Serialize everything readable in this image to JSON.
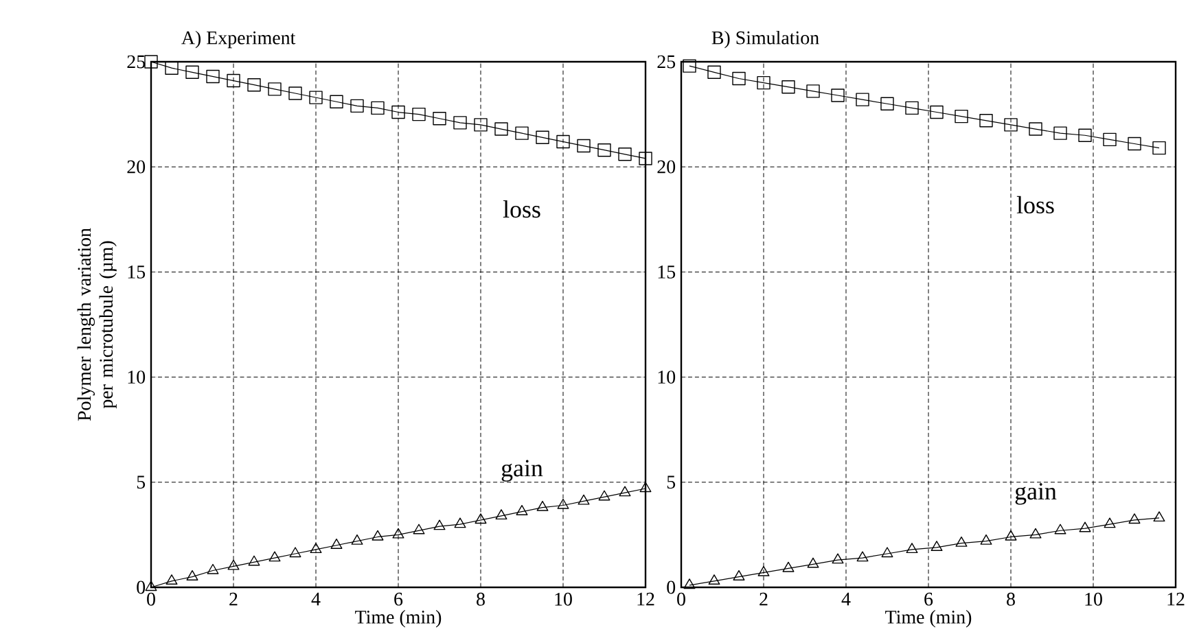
{
  "chart_data": [
    {
      "type": "line",
      "title": "A) Experiment",
      "xlabel": "Time (min)",
      "ylabel": "Polymer length variation per microtubule (µm)",
      "xlim": [
        0,
        12
      ],
      "ylim": [
        0,
        25
      ],
      "xticks": [
        0,
        2,
        4,
        6,
        8,
        10,
        12
      ],
      "yticks": [
        0,
        5,
        10,
        15,
        20,
        25
      ],
      "grid": true,
      "series": [
        {
          "name": "loss",
          "color": "#000000",
          "marker": "square",
          "x": [
            0,
            0.5,
            1,
            1.5,
            2,
            2.5,
            3,
            3.5,
            4,
            4.5,
            5,
            5.5,
            6,
            6.5,
            7,
            7.5,
            8,
            8.5,
            9,
            9.5,
            10,
            10.5,
            11,
            11.5,
            12
          ],
          "values": [
            25.0,
            24.7,
            24.5,
            24.3,
            24.1,
            23.9,
            23.7,
            23.5,
            23.3,
            23.1,
            22.9,
            22.8,
            22.6,
            22.5,
            22.3,
            22.1,
            22.0,
            21.8,
            21.6,
            21.4,
            21.2,
            21.0,
            20.8,
            20.6,
            20.4
          ]
        },
        {
          "name": "gain",
          "color": "#000000",
          "marker": "triangle",
          "x": [
            0,
            0.5,
            1,
            1.5,
            2,
            2.5,
            3,
            3.5,
            4,
            4.5,
            5,
            5.5,
            6,
            6.5,
            7,
            7.5,
            8,
            8.5,
            9,
            9.5,
            10,
            10.5,
            11,
            11.5,
            12
          ],
          "values": [
            0,
            0.3,
            0.5,
            0.8,
            1.0,
            1.2,
            1.4,
            1.6,
            1.8,
            2.0,
            2.2,
            2.4,
            2.5,
            2.7,
            2.9,
            3.0,
            3.2,
            3.4,
            3.6,
            3.8,
            3.9,
            4.1,
            4.3,
            4.5,
            4.7
          ]
        }
      ]
    },
    {
      "type": "line",
      "title": "B) Simulation",
      "xlabel": "Time (min)",
      "xlim": [
        0,
        12
      ],
      "ylim": [
        0,
        25
      ],
      "xticks": [
        0,
        2,
        4,
        6,
        8,
        10,
        12
      ],
      "yticks": [
        0,
        5,
        10,
        15,
        20,
        25
      ],
      "grid": true,
      "series": [
        {
          "name": "loss",
          "color": "#000000",
          "marker": "square",
          "x": [
            0.2,
            0.8,
            1.4,
            2.0,
            2.6,
            3.2,
            3.8,
            4.4,
            5.0,
            5.6,
            6.2,
            6.8,
            7.4,
            8.0,
            8.6,
            9.2,
            9.8,
            10.4,
            11.0,
            11.6
          ],
          "values": [
            24.8,
            24.5,
            24.2,
            24.0,
            23.8,
            23.6,
            23.4,
            23.2,
            23.0,
            22.8,
            22.6,
            22.4,
            22.2,
            22.0,
            21.8,
            21.6,
            21.5,
            21.3,
            21.1,
            20.9
          ]
        },
        {
          "name": "gain",
          "color": "#000000",
          "marker": "triangle",
          "x": [
            0.2,
            0.8,
            1.4,
            2.0,
            2.6,
            3.2,
            3.8,
            4.4,
            5.0,
            5.6,
            6.2,
            6.8,
            7.4,
            8.0,
            8.6,
            9.2,
            9.8,
            10.4,
            11.0,
            11.6
          ],
          "values": [
            0.1,
            0.3,
            0.5,
            0.7,
            0.9,
            1.1,
            1.3,
            1.4,
            1.6,
            1.8,
            1.9,
            2.1,
            2.2,
            2.4,
            2.5,
            2.7,
            2.8,
            3.0,
            3.2,
            3.3
          ]
        }
      ]
    }
  ]
}
